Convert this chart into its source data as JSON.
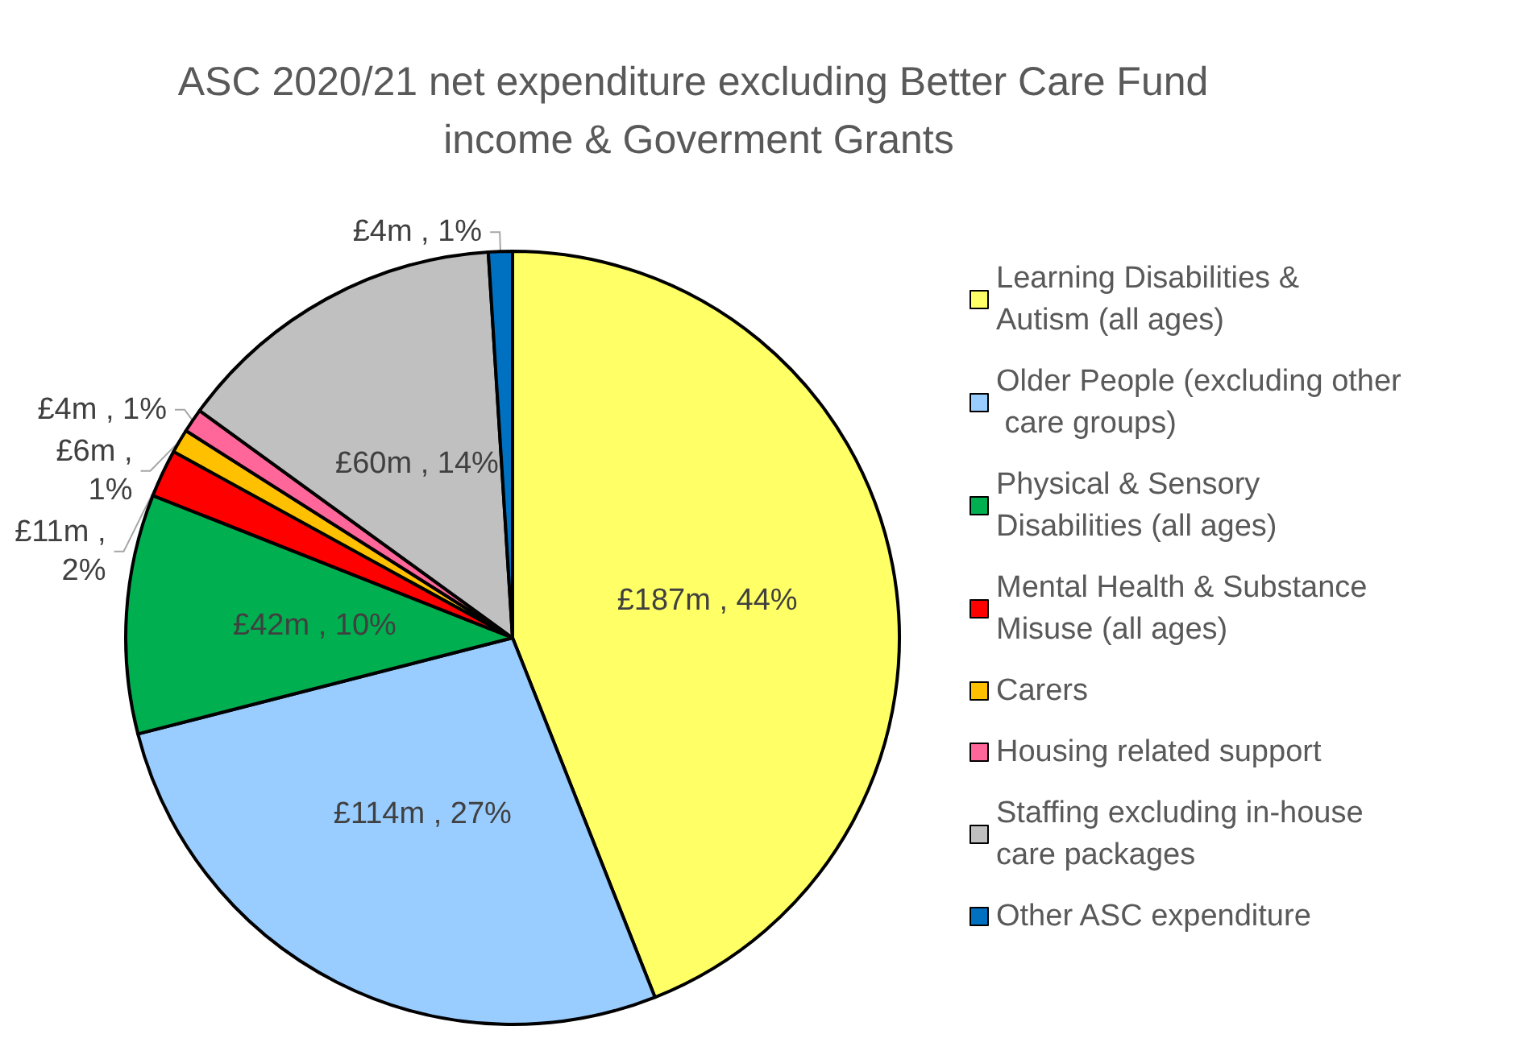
{
  "chart_data": {
    "type": "pie",
    "title": "ASC 2020/21 net expenditure excluding Better Care Fund income & Goverment Grants",
    "categories": [
      "Learning Disabilities & Autism (all ages)",
      "Older People (excluding other care groups)",
      "Physical & Sensory Disabilities (all ages)",
      "Mental Health & Substance Misuse (all ages)",
      "Carers",
      "Housing related support",
      "Staffing excluding in-house care packages",
      "Other ASC expenditure"
    ],
    "values": [
      44,
      27,
      10,
      2,
      1,
      1,
      14,
      1
    ],
    "colors": [
      "#ffff66",
      "#99ccff",
      "#00b050",
      "#ff0000",
      "#ffc000",
      "#ff6699",
      "#c0c0c0",
      "#0070c0"
    ],
    "value_labels": [
      "£187m , 44%",
      "£114m , 27%",
      "£42m , 10%",
      "£11m ,\n2%",
      "£6m ,\n1%",
      "£4m , 1%",
      "£60m , 14%",
      "£4m , 1%"
    ],
    "legend": "right"
  }
}
